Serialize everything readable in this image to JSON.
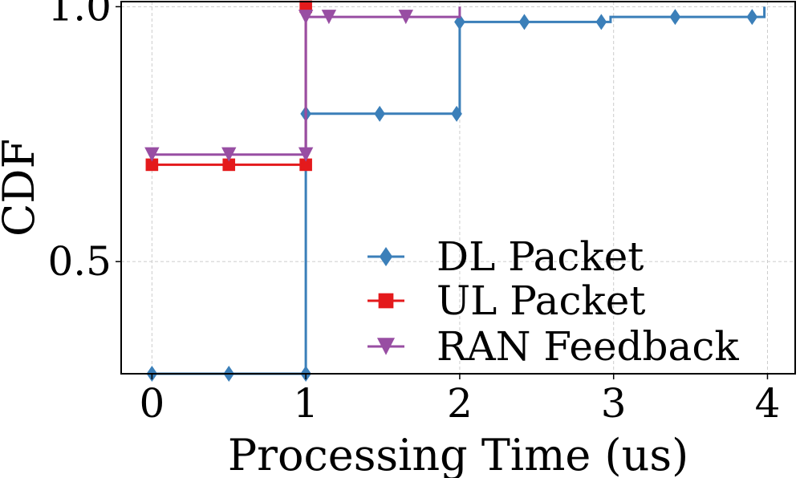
{
  "chart_data": {
    "type": "line",
    "title": "",
    "xlabel": "Processing Time (us)",
    "ylabel": "CDF",
    "xlim": [
      -0.2,
      4.18
    ],
    "ylim": [
      0.28,
      1.01
    ],
    "xticks": [
      0,
      1,
      2,
      3,
      4
    ],
    "xtick_labels": [
      "0",
      "1",
      "2",
      "3",
      "4"
    ],
    "yticks": [
      0.5,
      1.0
    ],
    "ytick_labels": [
      "0.5",
      "1.0"
    ],
    "grid": true,
    "legend_position": "lower-right",
    "series": [
      {
        "name": "DL Packet",
        "color": "#3b7fb9",
        "marker": "diamond",
        "steps": [
          [
            0,
            0.28
          ],
          [
            1,
            0.28
          ],
          [
            1,
            0.79
          ],
          [
            2,
            0.79
          ],
          [
            2,
            0.97
          ],
          [
            2.98,
            0.97
          ],
          [
            2.98,
            0.98
          ],
          [
            3.98,
            0.98
          ],
          [
            3.98,
            1.0
          ]
        ],
        "markers": [
          [
            0,
            0.28
          ],
          [
            0.5,
            0.28
          ],
          [
            1,
            0.28
          ],
          [
            1,
            0.79
          ],
          [
            1.48,
            0.79
          ],
          [
            1.98,
            0.79
          ],
          [
            2,
            0.97
          ],
          [
            2.42,
            0.97
          ],
          [
            2.92,
            0.97
          ],
          [
            3.4,
            0.98
          ],
          [
            3.9,
            0.98
          ]
        ]
      },
      {
        "name": "UL Packet",
        "color": "#e41a1c",
        "marker": "square",
        "steps": [
          [
            0,
            0.69
          ],
          [
            1,
            0.69
          ],
          [
            1,
            1.0
          ]
        ],
        "markers": [
          [
            0,
            0.69
          ],
          [
            0.5,
            0.69
          ],
          [
            1,
            0.69
          ],
          [
            1,
            1.0
          ]
        ]
      },
      {
        "name": "RAN Feedback",
        "color": "#984ea3",
        "marker": "triangle-down",
        "steps": [
          [
            0,
            0.71
          ],
          [
            1,
            0.71
          ],
          [
            1,
            0.98
          ],
          [
            2,
            0.98
          ],
          [
            2,
            1.0
          ]
        ],
        "markers": [
          [
            0,
            0.71
          ],
          [
            0.5,
            0.71
          ],
          [
            1,
            0.71
          ],
          [
            1,
            0.98
          ],
          [
            1.15,
            0.98
          ],
          [
            1.65,
            0.98
          ]
        ]
      }
    ]
  }
}
